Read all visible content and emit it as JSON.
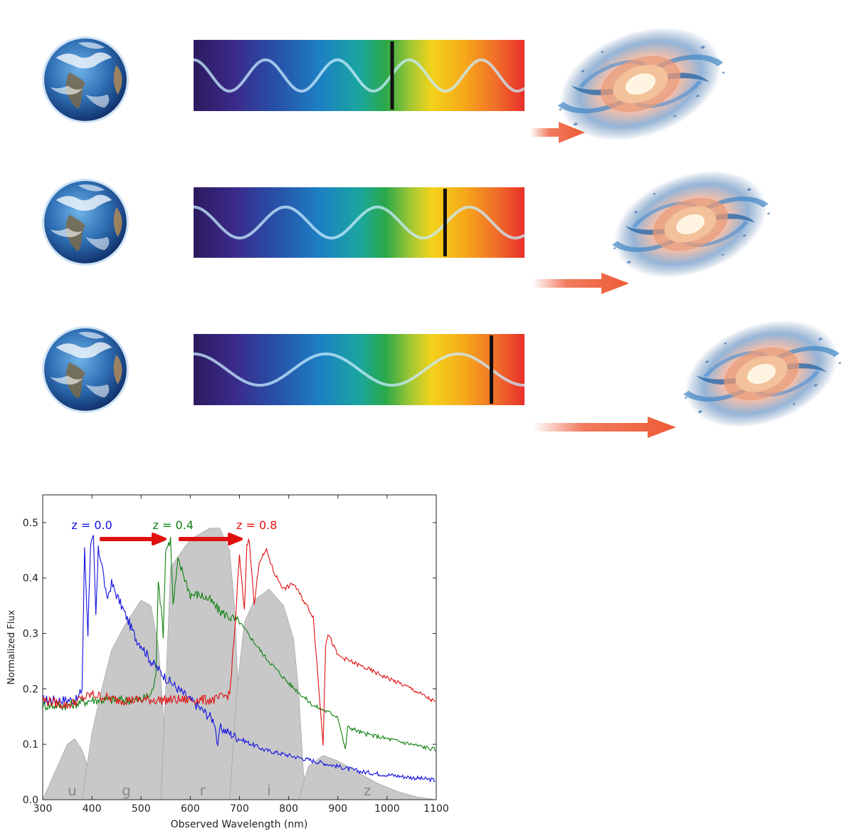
{
  "rows": [
    {
      "wave_periods": 4.6,
      "line_wavelength_fraction": 0.6,
      "arrow_level": "short"
    },
    {
      "wave_periods": 3.6,
      "line_wavelength_fraction": 0.76,
      "arrow_level": "medium"
    },
    {
      "wave_periods": 2.5,
      "line_wavelength_fraction": 0.9,
      "arrow_level": "long"
    }
  ],
  "colors": {
    "spectrum": [
      "#2b1a5e",
      "#3b2a8a",
      "#2850a8",
      "#1d7fc4",
      "#1aa6a0",
      "#2aa84a",
      "#a8c832",
      "#f3d21a",
      "#f7a81a",
      "#f06a2a",
      "#e8302a"
    ],
    "arrow": "#ee5a36",
    "z0": "#1010e0",
    "z04": "#108010",
    "z08": "#e01010",
    "filter": "#c8c8c8"
  },
  "chart_data": {
    "type": "line",
    "xlabel": "Observed Wavelength (nm)",
    "ylabel": "Normalized Flux",
    "xlim": [
      300,
      1100
    ],
    "ylim": [
      0.0,
      0.55
    ],
    "xticks": [
      "300",
      "400",
      "500",
      "600",
      "700",
      "800",
      "900",
      "1000",
      "1100"
    ],
    "yticks": [
      "0.0",
      "0.1",
      "0.2",
      "0.3",
      "0.4",
      "0.5"
    ],
    "grid": false,
    "annotations": [
      {
        "text": "z = 0.0",
        "x": 400,
        "y": 0.5,
        "color": "#1010e0"
      },
      {
        "text": "z = 0.4",
        "x": 565,
        "y": 0.5,
        "color": "#108010"
      },
      {
        "text": "z = 0.8",
        "x": 735,
        "y": 0.5,
        "color": "#e01010"
      }
    ],
    "filters": [
      {
        "name": "u",
        "x": [
          300,
          330,
          350,
          365,
          380,
          400,
          420
        ],
        "y": [
          0.0,
          0.06,
          0.1,
          0.11,
          0.09,
          0.04,
          0.0
        ]
      },
      {
        "name": "g",
        "x": [
          380,
          400,
          420,
          440,
          470,
          500,
          520,
          535,
          550,
          560
        ],
        "y": [
          0.0,
          0.12,
          0.2,
          0.27,
          0.32,
          0.36,
          0.35,
          0.28,
          0.1,
          0.0
        ]
      },
      {
        "name": "r",
        "x": [
          540,
          550,
          560,
          600,
          640,
          660,
          680,
          690,
          700,
          710
        ],
        "y": [
          0.0,
          0.2,
          0.42,
          0.47,
          0.49,
          0.49,
          0.45,
          0.35,
          0.15,
          0.0
        ]
      },
      {
        "name": "i",
        "x": [
          680,
          695,
          710,
          730,
          760,
          790,
          810,
          820,
          830,
          840
        ],
        "y": [
          0.0,
          0.2,
          0.32,
          0.36,
          0.38,
          0.35,
          0.29,
          0.2,
          0.05,
          0.0
        ]
      },
      {
        "name": "z",
        "x": [
          820,
          840,
          870,
          900,
          940,
          980,
          1020,
          1060,
          1100
        ],
        "y": [
          0.0,
          0.06,
          0.08,
          0.07,
          0.05,
          0.03,
          0.015,
          0.005,
          0.0
        ]
      }
    ],
    "series": [
      {
        "name": "z = 0.0",
        "color": "#1010e0",
        "x": [
          300,
          370,
          380,
          385,
          392,
          397,
          403,
          408,
          413,
          420,
          430,
          440,
          450,
          470,
          490,
          500,
          520,
          550,
          600,
          640,
          650,
          656,
          660,
          700,
          750,
          800,
          850,
          900,
          950,
          1000,
          1050,
          1100
        ],
        "y": [
          0.18,
          0.18,
          0.2,
          0.45,
          0.3,
          0.46,
          0.47,
          0.33,
          0.45,
          0.43,
          0.36,
          0.39,
          0.37,
          0.33,
          0.29,
          0.28,
          0.25,
          0.22,
          0.18,
          0.15,
          0.14,
          0.09,
          0.13,
          0.11,
          0.09,
          0.08,
          0.07,
          0.06,
          0.05,
          0.045,
          0.04,
          0.035
        ]
      },
      {
        "name": "z = 0.4",
        "color": "#108010",
        "x": [
          300,
          350,
          400,
          450,
          500,
          520,
          530,
          535,
          545,
          550,
          560,
          565,
          575,
          585,
          600,
          620,
          640,
          660,
          700,
          750,
          800,
          850,
          900,
          915,
          920,
          925,
          950,
          1000,
          1050,
          1100
        ],
        "y": [
          0.17,
          0.17,
          0.18,
          0.18,
          0.18,
          0.19,
          0.22,
          0.4,
          0.3,
          0.45,
          0.47,
          0.35,
          0.43,
          0.41,
          0.37,
          0.37,
          0.36,
          0.34,
          0.32,
          0.26,
          0.21,
          0.17,
          0.15,
          0.09,
          0.13,
          0.13,
          0.12,
          0.11,
          0.1,
          0.09
        ]
      },
      {
        "name": "z = 0.8",
        "color": "#e01010",
        "x": [
          300,
          350,
          400,
          450,
          500,
          550,
          600,
          650,
          680,
          690,
          700,
          710,
          715,
          720,
          730,
          740,
          755,
          770,
          790,
          810,
          850,
          870,
          875,
          880,
          900,
          950,
          1000,
          1050,
          1100
        ],
        "y": [
          0.18,
          0.17,
          0.19,
          0.18,
          0.18,
          0.18,
          0.18,
          0.18,
          0.19,
          0.3,
          0.44,
          0.34,
          0.46,
          0.47,
          0.35,
          0.43,
          0.45,
          0.41,
          0.38,
          0.39,
          0.33,
          0.1,
          0.28,
          0.3,
          0.26,
          0.24,
          0.22,
          0.2,
          0.175
        ]
      }
    ]
  }
}
